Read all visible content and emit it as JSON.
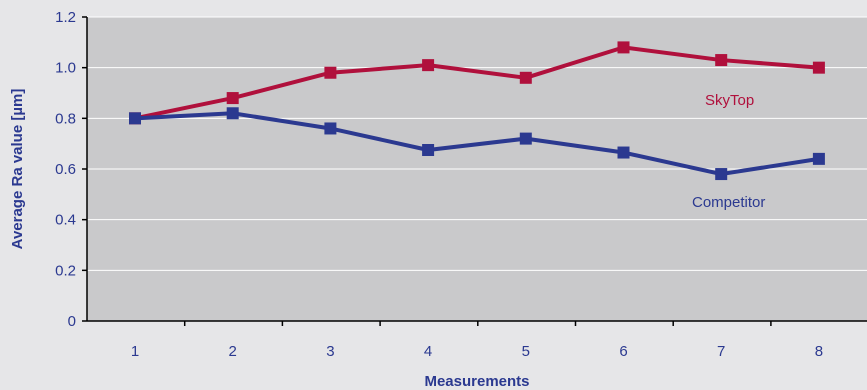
{
  "chart_data": {
    "type": "line",
    "xlabel": "Measurements",
    "ylabel": "Average Ra value [µm]",
    "categories": [
      "1",
      "2",
      "3",
      "4",
      "5",
      "6",
      "7",
      "8"
    ],
    "ylim": [
      0,
      1.2
    ],
    "yticks": [
      "0",
      "0.2",
      "0.4",
      "0.6",
      "0.8",
      "1.0",
      "1.2"
    ],
    "grid": true,
    "legend": "inline labels",
    "series": [
      {
        "name": "SkyTop",
        "color": "#b0103c",
        "values": [
          0.8,
          0.88,
          0.98,
          1.01,
          0.96,
          1.08,
          1.03,
          1.0
        ]
      },
      {
        "name": "Competitor",
        "color": "#2b3990",
        "values": [
          0.8,
          0.82,
          0.76,
          0.675,
          0.72,
          0.665,
          0.58,
          0.64
        ]
      }
    ]
  },
  "colors": {
    "background": "#e6e6e8",
    "plot_area": "#c9c9cb",
    "gridline": "#ffffff",
    "text": "#2b3990"
  }
}
